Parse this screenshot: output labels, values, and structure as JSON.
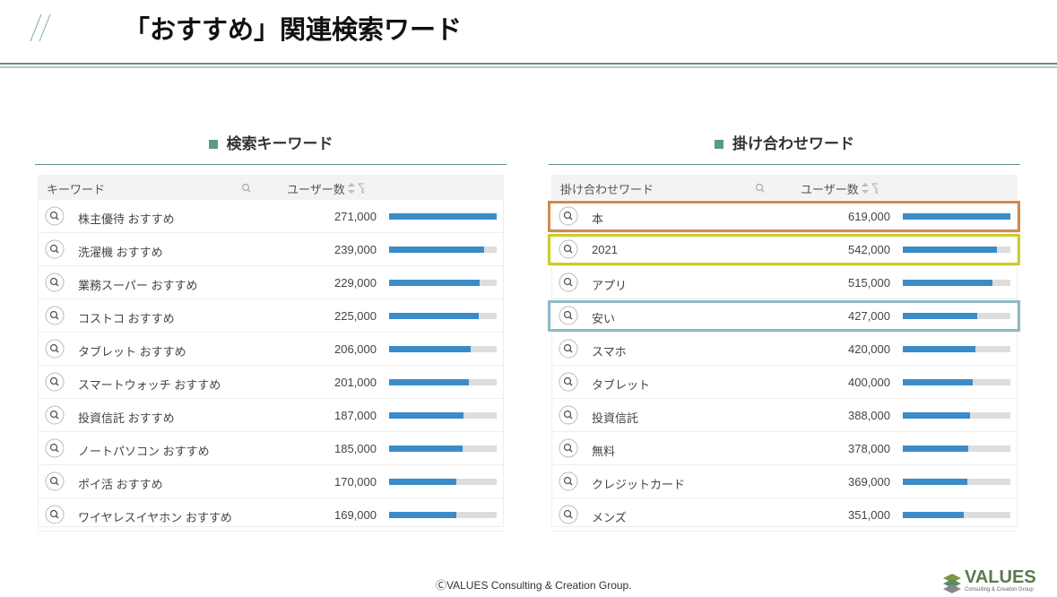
{
  "header": {
    "title": "「おすすめ」関連検索ワード"
  },
  "panels": [
    {
      "heading": "検索キーワード",
      "columns": [
        "キーワード",
        "ユーザー数"
      ],
      "keywords": [
        "株主優待 おすすめ",
        "洗濯機 おすすめ",
        "業務スーパー おすすめ",
        "コストコ おすすめ",
        "タブレット おすすめ",
        "スマートウォッチ おすすめ",
        "投資信託 おすすめ",
        "ノートパソコン おすすめ",
        "ポイ活 おすすめ",
        "ワイヤレスイヤホン おすすめ"
      ],
      "values": [
        271000,
        239000,
        229000,
        225000,
        206000,
        201000,
        187000,
        185000,
        170000,
        169000
      ],
      "value_labels": [
        "271,000",
        "239,000",
        "229,000",
        "225,000",
        "206,000",
        "201,000",
        "187,000",
        "185,000",
        "170,000",
        "169,000"
      ],
      "highlights": []
    },
    {
      "heading": "掛け合わせワード",
      "columns": [
        "掛け合わせワード",
        "ユーザー数"
      ],
      "keywords": [
        "本",
        "2021",
        "アプリ",
        "安い",
        "スマホ",
        "タブレット",
        "投資信託",
        "無料",
        "クレジットカード",
        "メンズ"
      ],
      "values": [
        619000,
        542000,
        515000,
        427000,
        420000,
        400000,
        388000,
        378000,
        369000,
        351000
      ],
      "value_labels": [
        "619,000",
        "542,000",
        "515,000",
        "427,000",
        "420,000",
        "400,000",
        "388,000",
        "378,000",
        "369,000",
        "351,000"
      ],
      "highlights": [
        {
          "row": 0,
          "color": "#d08a4e"
        },
        {
          "row": 1,
          "color": "#c8cc2c"
        },
        {
          "row": 3,
          "color": "#8fb8c8"
        }
      ]
    }
  ],
  "footer": {
    "copyright": "ⒸVALUES Consulting & Creation Group.",
    "logo": "VALUES",
    "logo_sub": "Consulting & Creation Group"
  }
}
